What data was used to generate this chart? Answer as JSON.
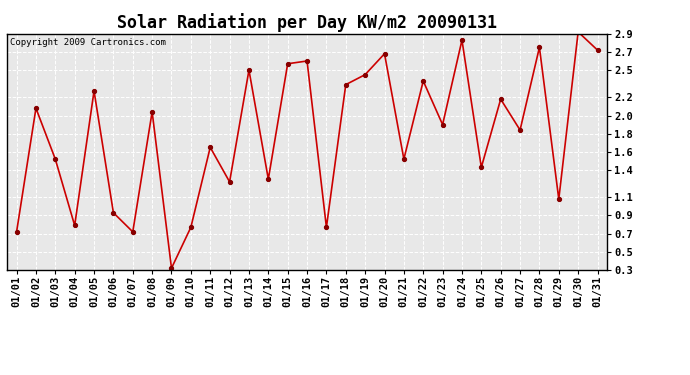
{
  "title": "Solar Radiation per Day KW/m2 20090131",
  "copyright_text": "Copyright 2009 Cartronics.com",
  "dates": [
    "01/01",
    "01/02",
    "01/03",
    "01/04",
    "01/05",
    "01/06",
    "01/07",
    "01/08",
    "01/09",
    "01/10",
    "01/11",
    "01/12",
    "01/13",
    "01/14",
    "01/15",
    "01/16",
    "01/17",
    "01/18",
    "01/19",
    "01/20",
    "01/21",
    "01/22",
    "01/23",
    "01/24",
    "01/25",
    "01/26",
    "01/27",
    "01/28",
    "01/29",
    "01/30",
    "01/31"
  ],
  "values": [
    0.72,
    2.08,
    1.52,
    0.79,
    2.27,
    0.93,
    0.72,
    2.04,
    0.32,
    0.77,
    1.65,
    1.27,
    2.5,
    1.3,
    2.57,
    2.6,
    0.77,
    2.34,
    2.45,
    2.68,
    1.52,
    2.38,
    1.9,
    2.83,
    1.43,
    2.18,
    1.84,
    2.75,
    1.08,
    2.92,
    2.72
  ],
  "ylim": [
    0.3,
    2.9
  ],
  "yticks": [
    0.3,
    0.5,
    0.7,
    0.9,
    1.1,
    1.4,
    1.6,
    1.8,
    2.0,
    2.2,
    2.5,
    2.7,
    2.9
  ],
  "ytick_labels": [
    "0.3",
    "0.5",
    "0.7",
    "0.9",
    "1.1",
    "1.4",
    "1.6",
    "1.8",
    "2.0",
    "2.2",
    "2.5",
    "2.7",
    "2.9"
  ],
  "line_color": "#cc0000",
  "marker": "o",
  "marker_color": "#880000",
  "marker_size": 3,
  "bg_color": "#ffffff",
  "plot_bg_color": "#e8e8e8",
  "grid_color": "#ffffff",
  "title_fontsize": 12,
  "tick_fontsize": 7.5,
  "copyright_fontsize": 6.5
}
